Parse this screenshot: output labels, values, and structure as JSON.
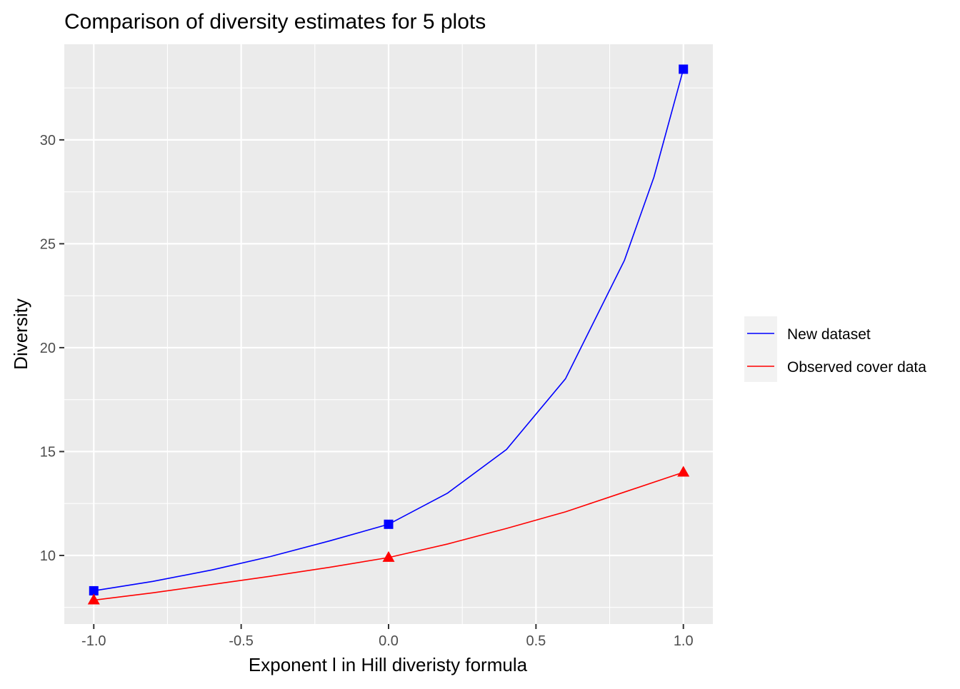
{
  "chart_data": {
    "type": "line",
    "title": "Comparison of diversity estimates for 5 plots",
    "xlabel": "Exponent l in Hill diveristy formula",
    "ylabel": "Diversity",
    "xlim": [
      -1.1,
      1.1
    ],
    "ylim": [
      6.7,
      34.6
    ],
    "x_ticks": [
      -1.0,
      -0.5,
      0.0,
      0.5,
      1.0
    ],
    "x_tick_labels": [
      "-1.0",
      "-0.5",
      "0.0",
      "0.5",
      "1.0"
    ],
    "y_ticks": [
      10,
      15,
      20,
      25,
      30
    ],
    "y_tick_labels": [
      "10",
      "15",
      "20",
      "25",
      "30"
    ],
    "grid": true,
    "legend_position": "right",
    "series": [
      {
        "name": "New dataset",
        "color": "#0000FF",
        "marker": "square",
        "x": [
          -1.0,
          -0.8,
          -0.6,
          -0.4,
          -0.2,
          0.0,
          0.2,
          0.4,
          0.6,
          0.8,
          0.9,
          1.0
        ],
        "y": [
          8.3,
          8.75,
          9.3,
          9.95,
          10.7,
          11.5,
          13.0,
          15.1,
          18.5,
          24.2,
          28.2,
          33.4
        ],
        "marker_points": [
          {
            "x": -1.0,
            "y": 8.3
          },
          {
            "x": 0.0,
            "y": 11.5
          },
          {
            "x": 1.0,
            "y": 33.4
          }
        ]
      },
      {
        "name": "Observed cover data",
        "color": "#FF0000",
        "marker": "triangle",
        "x": [
          -1.0,
          -0.8,
          -0.6,
          -0.4,
          -0.2,
          0.0,
          0.2,
          0.4,
          0.6,
          0.8,
          1.0
        ],
        "y": [
          7.85,
          8.2,
          8.6,
          9.0,
          9.43,
          9.9,
          10.55,
          11.3,
          12.1,
          13.05,
          14.0
        ],
        "marker_points": [
          {
            "x": -1.0,
            "y": 7.85
          },
          {
            "x": 0.0,
            "y": 9.9
          },
          {
            "x": 1.0,
            "y": 14.0
          }
        ]
      }
    ]
  }
}
